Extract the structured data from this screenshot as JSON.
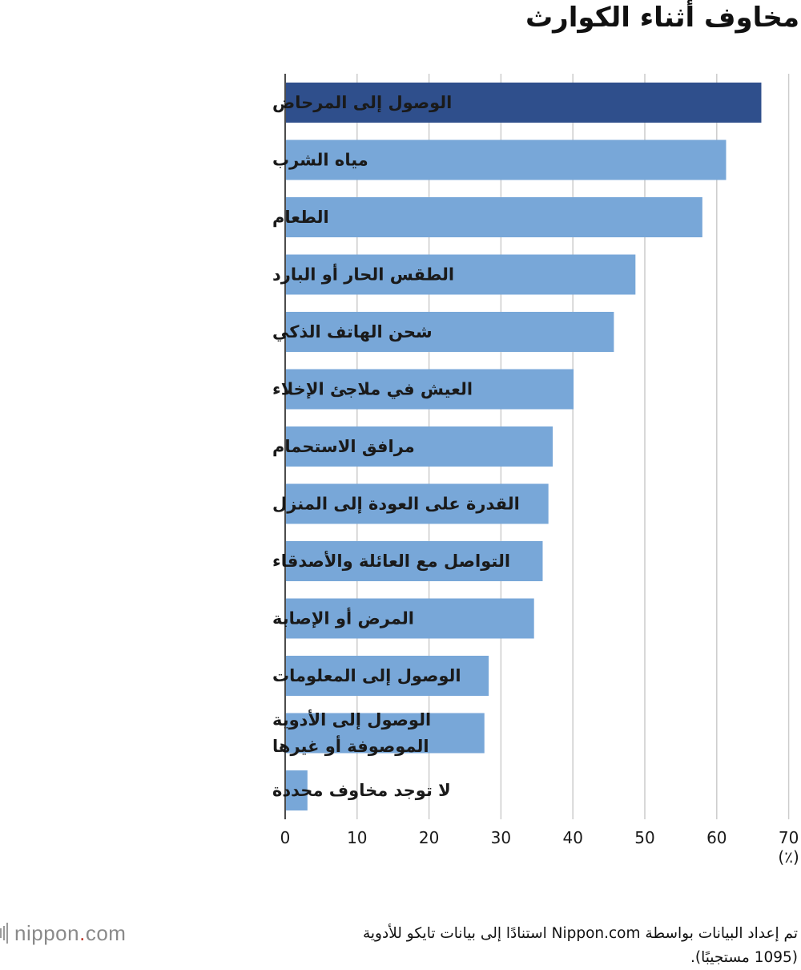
{
  "title": "مخاوف أثناء الكوارث",
  "unit_label": "(٪)",
  "footnote": {
    "line1": "تم إعداد البيانات بواسطة Nippon.com استنادًا إلى بيانات تايكو للأدوية",
    "line2": "(1095 مستجيبًا)."
  },
  "brand": {
    "name": "nippon",
    "dot": ".",
    "suffix": "com"
  },
  "colors": {
    "highlight": "#2f4f8c",
    "bar": "#78a7d8",
    "grid": "#cccccc",
    "axis": "#111111"
  },
  "chart_data": {
    "type": "bar",
    "orientation": "horizontal",
    "title": "مخاوف أثناء الكوارث",
    "xlabel": "(٪)",
    "ylabel": "",
    "xlim": [
      0,
      70
    ],
    "x_ticks": [
      0,
      10,
      20,
      30,
      40,
      50,
      60,
      70
    ],
    "grid": true,
    "highlight_index": 0,
    "categories": [
      [
        "الوصول إلى المرحاض"
      ],
      [
        "مياه الشرب"
      ],
      [
        "الطعام"
      ],
      [
        "الطقس الحار أو البارد"
      ],
      [
        "شحن الهاتف الذكي"
      ],
      [
        "العيش في ملاجئ الإخلاء"
      ],
      [
        "مرافق الاستحمام"
      ],
      [
        "القدرة على العودة إلى المنزل"
      ],
      [
        "التواصل مع العائلة والأصدقاء"
      ],
      [
        "المرض أو الإصابة"
      ],
      [
        "الوصول إلى المعلومات"
      ],
      [
        "الوصول إلى الأدوية",
        "الموصوفة أو غيرها"
      ],
      [
        "لا توجد مخاوف محددة"
      ]
    ],
    "values": [
      66.2,
      61.3,
      58.0,
      48.7,
      45.7,
      40.1,
      37.2,
      36.6,
      35.8,
      34.6,
      28.3,
      27.7,
      3.1
    ]
  }
}
